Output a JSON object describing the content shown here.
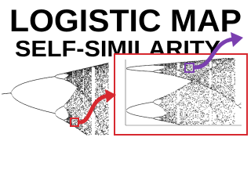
{
  "title": "LOGISTIC MAP",
  "subtitle": "SELF-SIMILARITY"
}
